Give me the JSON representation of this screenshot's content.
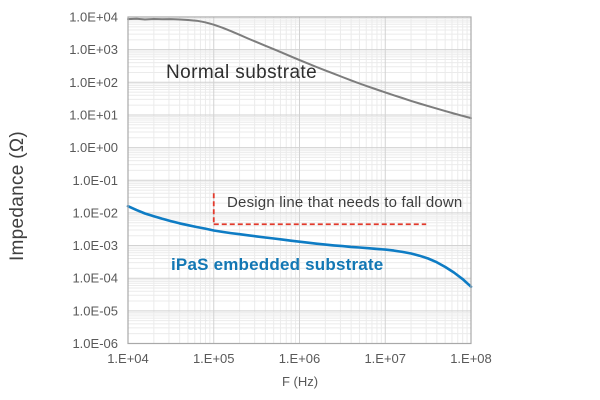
{
  "figure": {
    "y_axis_title": "Impedance (Ω)",
    "x_axis_title": "F (Hz)"
  },
  "annotations": {
    "normal": {
      "text": "Normal substrate",
      "color": "#2e2e2e"
    },
    "design": {
      "text": "Design line that needs to fall down",
      "color": "#3d3d3d"
    },
    "ipas": {
      "text": "iPaS embedded substrate",
      "color": "#1277b4"
    }
  },
  "colors": {
    "normal_substrate_line": "#7d7d7d",
    "ipas_line": "#0e7cc4",
    "design_line": "#e23a2c",
    "tick_label": "#595959",
    "minor_grid": "#ebebeb",
    "major_grid": "#d2d2d2",
    "plot_border": "#a9a9a9",
    "background": "#ffffff"
  },
  "chart_data": {
    "type": "line",
    "title": "",
    "xlabel": "F (Hz)",
    "ylabel": "Impedance (Ω)",
    "x_scale": "log",
    "y_scale": "log",
    "xlim": [
      10000,
      100000000
    ],
    "ylim": [
      1e-06,
      10000
    ],
    "grid": "log major and minor gridlines, both axes",
    "legend_position": "none (inline text labels)",
    "x_ticks": [
      "1.E+04",
      "1.E+05",
      "1.E+06",
      "1.E+07",
      "1.E+08"
    ],
    "y_ticks": [
      "1.0E+04",
      "1.0E+03",
      "1.0E+02",
      "1.0E+01",
      "1.0E+00",
      "1.0E-01",
      "1.0E-02",
      "1.0E-03",
      "1.0E-04",
      "1.0E-05",
      "1.0E-06"
    ],
    "series": [
      {
        "name": "Normal substrate",
        "color": "#7d7d7d",
        "stroke_width": 2,
        "points": [
          [
            10000,
            8600
          ],
          [
            12600,
            8800
          ],
          [
            15800,
            8400
          ],
          [
            20000,
            8700
          ],
          [
            25100,
            8500
          ],
          [
            31600,
            8600
          ],
          [
            39800,
            8400
          ],
          [
            50100,
            8100
          ],
          [
            63100,
            7700
          ],
          [
            79400,
            6900
          ],
          [
            100000,
            5800
          ],
          [
            126000,
            4700
          ],
          [
            158000,
            3700
          ],
          [
            200000,
            2850
          ],
          [
            251000,
            2200
          ],
          [
            316000,
            1700
          ],
          [
            398000,
            1320
          ],
          [
            501000,
            1030
          ],
          [
            631000,
            800
          ],
          [
            794000,
            620
          ],
          [
            1000000,
            480
          ],
          [
            1260000,
            375
          ],
          [
            1580000,
            295
          ],
          [
            2000000,
            232
          ],
          [
            2510000,
            183
          ],
          [
            3160000,
            145
          ],
          [
            3980000,
            115
          ],
          [
            5010000,
            92
          ],
          [
            6310000,
            74
          ],
          [
            7940000,
            60
          ],
          [
            10000000,
            49
          ],
          [
            12600000,
            40
          ],
          [
            15800000,
            33
          ],
          [
            20000000,
            27
          ],
          [
            25100000,
            22.5
          ],
          [
            31600000,
            18.7
          ],
          [
            39800000,
            15.6
          ],
          [
            50100000,
            13.1
          ],
          [
            63100000,
            11.1
          ],
          [
            79400000,
            9.4
          ],
          [
            100000000,
            8.0
          ]
        ]
      },
      {
        "name": "iPaS embedded substrate",
        "color": "#0e7cc4",
        "stroke_width": 2.6,
        "points": [
          [
            10000,
            0.016
          ],
          [
            12600,
            0.0122
          ],
          [
            15800,
            0.0096
          ],
          [
            20000,
            0.0079
          ],
          [
            25100,
            0.0066
          ],
          [
            31600,
            0.0056
          ],
          [
            39800,
            0.0048
          ],
          [
            50100,
            0.0042
          ],
          [
            63100,
            0.0037
          ],
          [
            79400,
            0.0033
          ],
          [
            100000,
            0.0029
          ],
          [
            126000,
            0.00262
          ],
          [
            158000,
            0.0024
          ],
          [
            200000,
            0.00222
          ],
          [
            251000,
            0.00206
          ],
          [
            316000,
            0.00191
          ],
          [
            398000,
            0.00177
          ],
          [
            501000,
            0.00164
          ],
          [
            631000,
            0.00152
          ],
          [
            794000,
            0.00141
          ],
          [
            1000000,
            0.00131
          ],
          [
            1260000,
            0.00122
          ],
          [
            1580000,
            0.00114
          ],
          [
            2000000,
            0.00107
          ],
          [
            2510000,
            0.00101
          ],
          [
            3160000,
            0.00096
          ],
          [
            3980000,
            0.00091
          ],
          [
            5010000,
            0.00087
          ],
          [
            6310000,
            0.00083
          ],
          [
            7940000,
            0.00079
          ],
          [
            10000000,
            0.00075
          ],
          [
            12600000,
            0.0007
          ],
          [
            15800000,
            0.00064
          ],
          [
            20000000,
            0.00057
          ],
          [
            25100000,
            0.00049
          ],
          [
            31600000,
            0.0004
          ],
          [
            39800000,
            0.00031
          ],
          [
            50100000,
            0.00022
          ],
          [
            63100000,
            0.00015
          ],
          [
            79400000,
            9.5e-05
          ],
          [
            100000000,
            5.5e-05
          ]
        ]
      }
    ],
    "design_line": {
      "label": "Design line that needs to fall down",
      "color": "#e23a2c",
      "style": "dashed",
      "vertical_segment": {
        "x": 100000,
        "y_from": 0.04,
        "y_to": 0.0045
      },
      "horizontal_segment": {
        "y": 0.0045,
        "x_from": 100000,
        "x_to": 30000000
      }
    }
  }
}
